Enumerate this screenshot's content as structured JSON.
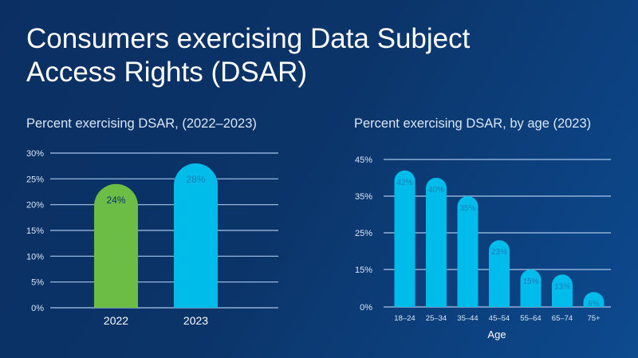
{
  "title_line1": "Consumers exercising Data Subject",
  "title_line2": "Access Rights (DSAR)",
  "colors": {
    "green": "#6cbd45",
    "blue": "#00bceb",
    "grid": "#a9c6e8",
    "label_dark": "#0b3468",
    "label_blue": "#1a7fb8"
  },
  "chart_data": [
    {
      "type": "bar",
      "title": "Percent exercising DSAR, (2022–2023)",
      "xlabel": "",
      "ylabel": "",
      "categories": [
        "2022",
        "2023"
      ],
      "values": [
        24,
        28
      ],
      "data_labels": [
        "24%",
        "28%"
      ],
      "bar_colors": [
        "#6cbd45",
        "#00bceb"
      ],
      "yticks": [
        0,
        5,
        10,
        15,
        20,
        25,
        30
      ],
      "ytick_labels": [
        "0%",
        "5%",
        "10%",
        "15%",
        "20%",
        "25%",
        "30%"
      ],
      "ylim": [
        0,
        30
      ],
      "grid": true,
      "legend": "none"
    },
    {
      "type": "bar",
      "title": "Percent exercising DSAR, by age (2023)",
      "xlabel": "Age",
      "ylabel": "",
      "categories": [
        "18-24",
        "25-34",
        "35-44",
        "45-54",
        "55-64",
        "65-74",
        "75+"
      ],
      "values": [
        42,
        40,
        35,
        23,
        15,
        13,
        6
      ],
      "data_labels": [
        "42%",
        "40%",
        "35%",
        "23%",
        "15%",
        "13%",
        "6%"
      ],
      "bar_color": "#00bceb",
      "yticks": [
        0,
        15,
        25,
        35,
        45
      ],
      "ytick_labels": [
        "0%",
        "15%",
        "25%",
        "35%",
        "45%"
      ],
      "ylim": [
        0,
        45
      ],
      "grid": true,
      "legend": "none"
    }
  ]
}
